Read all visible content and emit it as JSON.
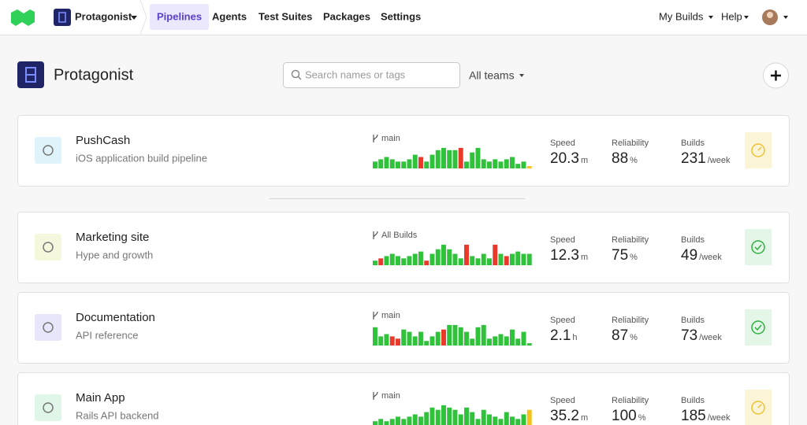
{
  "nav": {
    "org": "Protagonist",
    "items": [
      "Pipelines",
      "Agents",
      "Test Suites",
      "Packages",
      "Settings"
    ],
    "active": 0,
    "right": [
      "My Builds",
      "Help"
    ]
  },
  "header": {
    "title": "Protagonist",
    "search_placeholder": "Search names or tags",
    "filter": "All teams"
  },
  "pipelines": [
    {
      "name": "PushCash",
      "description": "iOS application build pipeline",
      "branch": "main",
      "icon_bg": "#dff3fb",
      "speed_label": "Speed",
      "speed": 20.3,
      "speed_unit": "m",
      "reliability_label": "Reliability",
      "reliability": 88,
      "reliability_unit": "%",
      "builds_label": "Builds",
      "builds": 231,
      "builds_unit": "/week",
      "status": "running",
      "bars": [
        3,
        4,
        5,
        4,
        3,
        3,
        4,
        6,
        5,
        3,
        6,
        8,
        9,
        8,
        8,
        9,
        3,
        7,
        9,
        4,
        3,
        4,
        3,
        4,
        5,
        2,
        3,
        1
      ],
      "bar_colors": [
        "#2fc23a",
        "#2fc23a",
        "#2fc23a",
        "#2fc23a",
        "#2fc23a",
        "#2fc23a",
        "#2fc23a",
        "#2fc23a",
        "#e8392b",
        "#2fc23a",
        "#2fc23a",
        "#2fc23a",
        "#2fc23a",
        "#2fc23a",
        "#2fc23a",
        "#e8392b",
        "#2fc23a",
        "#2fc23a",
        "#2fc23a",
        "#2fc23a",
        "#2fc23a",
        "#2fc23a",
        "#2fc23a",
        "#2fc23a",
        "#2fc23a",
        "#2fc23a",
        "#2fc23a",
        "#f4c21b"
      ]
    },
    {
      "name": "Marketing site",
      "description": "Hype and growth",
      "branch": "All Builds",
      "icon_bg": "#f5f8dc",
      "speed_label": "Speed",
      "speed": 12.3,
      "speed_unit": "m",
      "reliability_label": "Reliability",
      "reliability": 75,
      "reliability_unit": "%",
      "builds_label": "Builds",
      "builds": 49,
      "builds_unit": "/week",
      "status": "passed",
      "bars": [
        2,
        3,
        4,
        5,
        4,
        3,
        4,
        5,
        6,
        2,
        5,
        7,
        9,
        7,
        5,
        3,
        9,
        4,
        3,
        5,
        3,
        9,
        5,
        4,
        5,
        6,
        5,
        5
      ],
      "bar_colors": [
        "#2fc23a",
        "#e8392b",
        "#2fc23a",
        "#2fc23a",
        "#2fc23a",
        "#2fc23a",
        "#2fc23a",
        "#2fc23a",
        "#2fc23a",
        "#e8392b",
        "#2fc23a",
        "#2fc23a",
        "#2fc23a",
        "#2fc23a",
        "#2fc23a",
        "#2fc23a",
        "#e8392b",
        "#2fc23a",
        "#2fc23a",
        "#2fc23a",
        "#2fc23a",
        "#e8392b",
        "#2fc23a",
        "#e8392b",
        "#2fc23a",
        "#2fc23a",
        "#2fc23a",
        "#2fc23a"
      ]
    },
    {
      "name": "Documentation",
      "description": "API reference",
      "branch": "main",
      "icon_bg": "#e7e6fa",
      "speed_label": "Speed",
      "speed": 2.1,
      "speed_unit": "h",
      "reliability_label": "Reliability",
      "reliability": 87,
      "reliability_unit": "%",
      "builds_label": "Builds",
      "builds": 73,
      "builds_unit": "/week",
      "status": "passed",
      "bars": [
        8,
        4,
        5,
        4,
        3,
        7,
        6,
        4,
        6,
        2,
        4,
        6,
        7,
        9,
        9,
        8,
        6,
        3,
        8,
        9,
        3,
        4,
        5,
        4,
        7,
        3,
        6,
        1
      ],
      "bar_colors": [
        "#2fc23a",
        "#2fc23a",
        "#2fc23a",
        "#e8392b",
        "#e8392b",
        "#2fc23a",
        "#2fc23a",
        "#2fc23a",
        "#2fc23a",
        "#2fc23a",
        "#2fc23a",
        "#2fc23a",
        "#e8392b",
        "#2fc23a",
        "#2fc23a",
        "#2fc23a",
        "#2fc23a",
        "#2fc23a",
        "#2fc23a",
        "#2fc23a",
        "#2fc23a",
        "#2fc23a",
        "#2fc23a",
        "#2fc23a",
        "#2fc23a",
        "#2fc23a",
        "#2fc23a",
        "#2fc23a"
      ]
    },
    {
      "name": "Main App",
      "description": "Rails API backend",
      "branch": "main",
      "icon_bg": "#e0f6e8",
      "speed_label": "Speed",
      "speed": 35.2,
      "speed_unit": "m",
      "reliability_label": "Reliability",
      "reliability": 100,
      "reliability_unit": "%",
      "builds_label": "Builds",
      "builds": 185,
      "builds_unit": "/week",
      "status": "running",
      "bars": [
        2,
        3,
        2,
        3,
        4,
        3,
        4,
        5,
        4,
        6,
        8,
        7,
        9,
        8,
        7,
        5,
        8,
        6,
        3,
        7,
        5,
        4,
        3,
        6,
        4,
        3,
        5,
        7
      ],
      "bar_colors": [
        "#2fc23a",
        "#2fc23a",
        "#2fc23a",
        "#2fc23a",
        "#2fc23a",
        "#2fc23a",
        "#2fc23a",
        "#2fc23a",
        "#2fc23a",
        "#2fc23a",
        "#2fc23a",
        "#2fc23a",
        "#2fc23a",
        "#2fc23a",
        "#2fc23a",
        "#2fc23a",
        "#2fc23a",
        "#2fc23a",
        "#2fc23a",
        "#2fc23a",
        "#2fc23a",
        "#2fc23a",
        "#2fc23a",
        "#2fc23a",
        "#2fc23a",
        "#2fc23a",
        "#2fc23a",
        "#f4c21b"
      ]
    }
  ]
}
